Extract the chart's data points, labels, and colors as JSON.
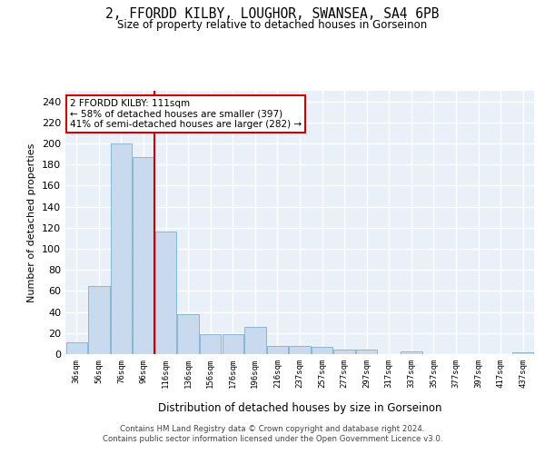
{
  "title_line1": "2, FFORDD KILBY, LOUGHOR, SWANSEA, SA4 6PB",
  "title_line2": "Size of property relative to detached houses in Gorseinon",
  "xlabel": "Distribution of detached houses by size in Gorseinon",
  "ylabel": "Number of detached properties",
  "bar_labels": [
    "36sqm",
    "56sqm",
    "76sqm",
    "96sqm",
    "116sqm",
    "136sqm",
    "156sqm",
    "176sqm",
    "196sqm",
    "216sqm",
    "237sqm",
    "257sqm",
    "277sqm",
    "297sqm",
    "317sqm",
    "337sqm",
    "357sqm",
    "377sqm",
    "397sqm",
    "417sqm",
    "437sqm"
  ],
  "bar_values": [
    11,
    65,
    200,
    187,
    116,
    38,
    19,
    19,
    26,
    8,
    8,
    7,
    4,
    4,
    0,
    3,
    0,
    0,
    0,
    0,
    2
  ],
  "bar_color": "#c9d9ee",
  "bar_edge_color": "#7bafd4",
  "vline_pos": 3.5,
  "vline_color": "#cc0000",
  "annotation_text": "2 FFORDD KILBY: 111sqm\n← 58% of detached houses are smaller (397)\n41% of semi-detached houses are larger (282) →",
  "annotation_box_color": "white",
  "annotation_box_edge_color": "#cc0000",
  "ylim": [
    0,
    250
  ],
  "yticks": [
    0,
    20,
    40,
    60,
    80,
    100,
    120,
    140,
    160,
    180,
    200,
    220,
    240
  ],
  "background_color": "#eaf0f8",
  "grid_color": "white",
  "footer_line1": "Contains HM Land Registry data © Crown copyright and database right 2024.",
  "footer_line2": "Contains public sector information licensed under the Open Government Licence v3.0."
}
